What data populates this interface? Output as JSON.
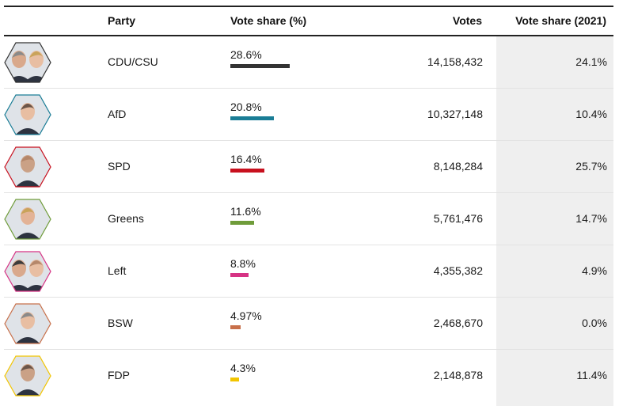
{
  "chart_data": {
    "type": "table",
    "columns": {
      "party": "Party",
      "share": "Vote share (%)",
      "votes": "Votes",
      "prev": "Vote share (2021)"
    },
    "rows": [
      {
        "party": "CDU/CSU",
        "share_label": "28.6%",
        "share": 28.6,
        "votes": "14,158,432",
        "prev": "24.1%",
        "color": "#333333",
        "portraits": 2
      },
      {
        "party": "AfD",
        "share_label": "20.8%",
        "share": 20.8,
        "votes": "10,327,148",
        "prev": "10.4%",
        "color": "#1a7d96",
        "portraits": 1
      },
      {
        "party": "SPD",
        "share_label": "16.4%",
        "share": 16.4,
        "votes": "8,148,284",
        "prev": "25.7%",
        "color": "#c8101e",
        "portraits": 1
      },
      {
        "party": "Greens",
        "share_label": "11.6%",
        "share": 11.6,
        "votes": "5,761,476",
        "prev": "14.7%",
        "color": "#6f9c3a",
        "portraits": 1
      },
      {
        "party": "Left",
        "share_label": "8.8%",
        "share": 8.8,
        "votes": "4,355,382",
        "prev": "4.9%",
        "color": "#d63384",
        "portraits": 2
      },
      {
        "party": "BSW",
        "share_label": "4.97%",
        "share": 4.97,
        "votes": "2,468,670",
        "prev": "0.0%",
        "color": "#c8704a",
        "portraits": 1
      },
      {
        "party": "FDP",
        "share_label": "4.3%",
        "share": 4.3,
        "votes": "2,148,878",
        "prev": "11.4%",
        "color": "#f2c500",
        "portraits": 1
      }
    ]
  }
}
